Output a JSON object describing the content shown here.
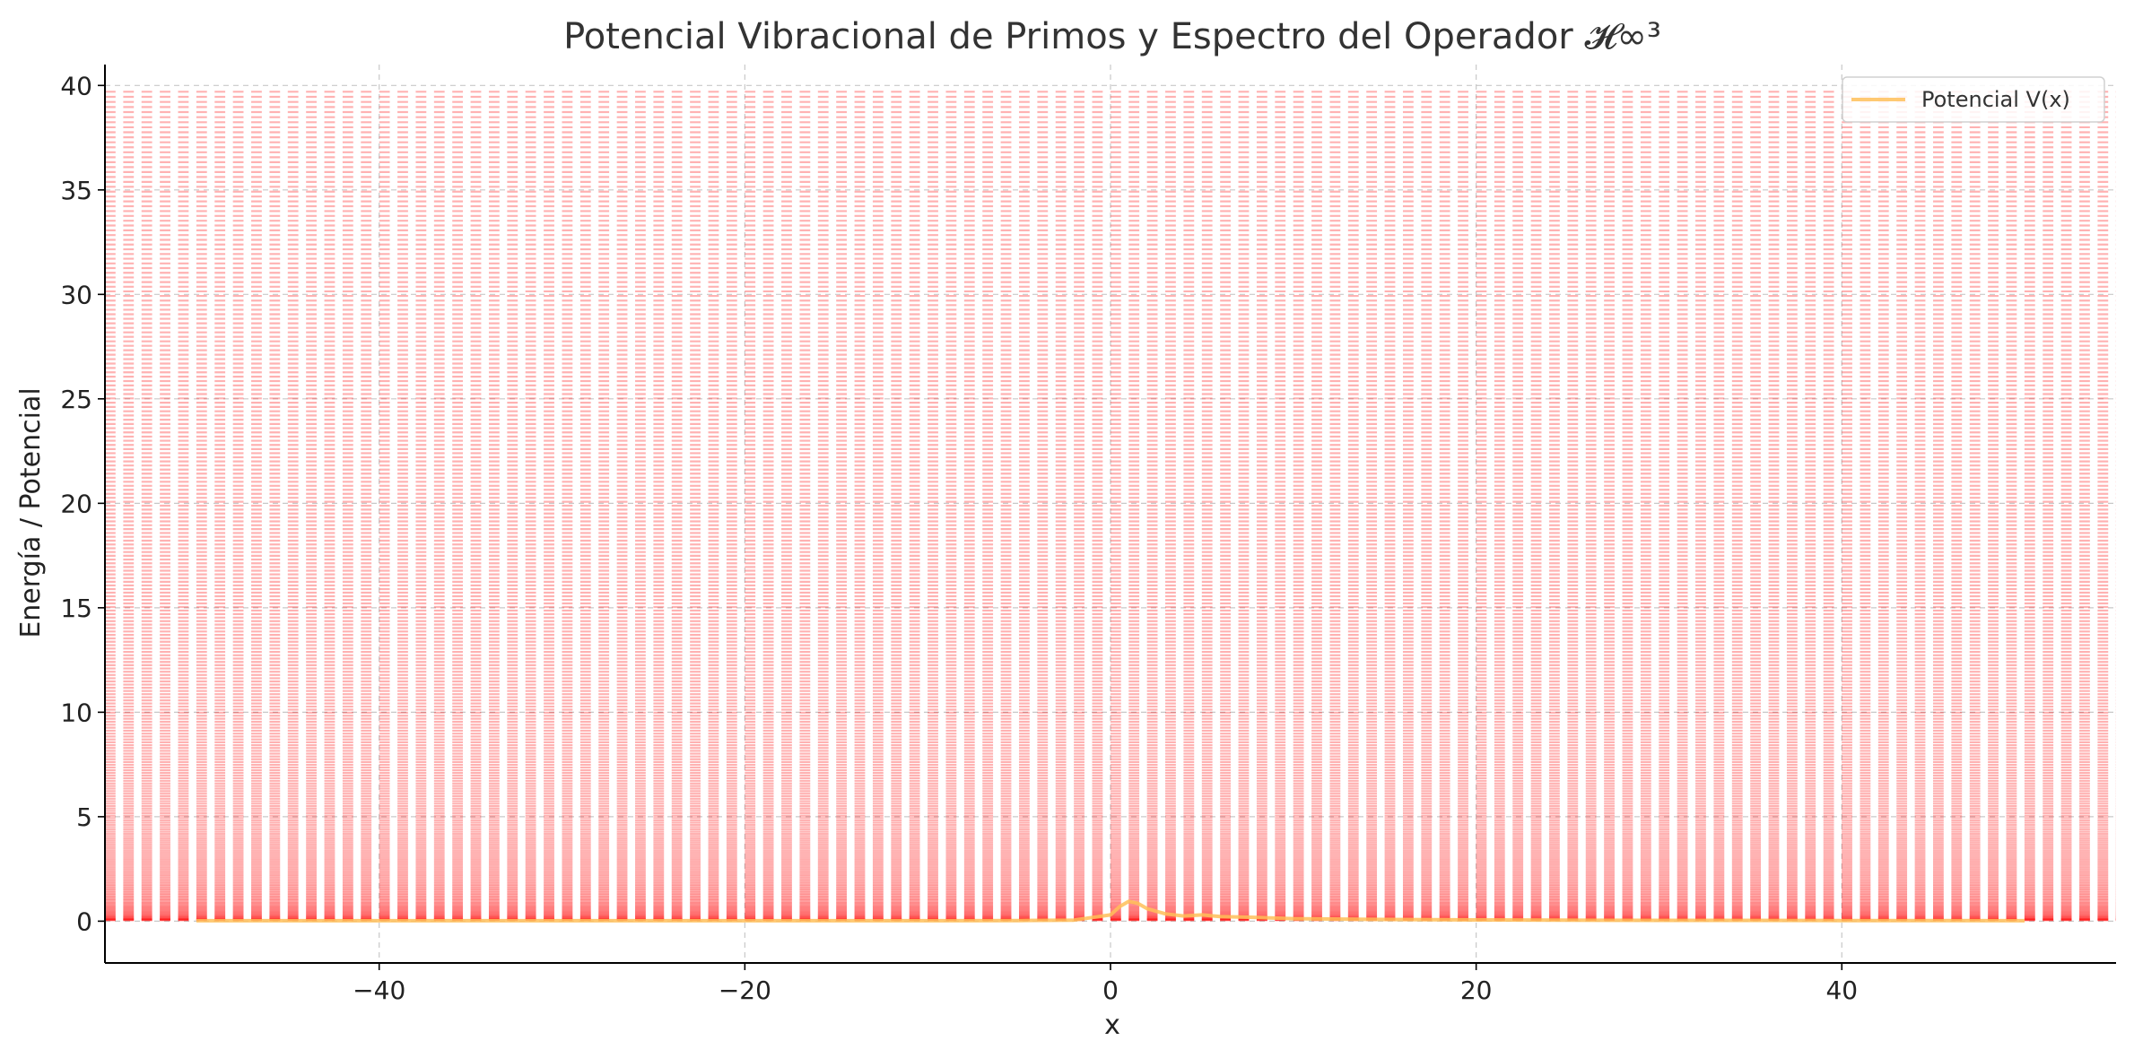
{
  "chart_data": {
    "type": "line",
    "title": "Potencial Vibracional de Primos y Espectro del Operador 𝓗∞³",
    "xlabel": "x",
    "ylabel": "Energía / Potencial",
    "xlim": [
      -55,
      55
    ],
    "ylim": [
      -2,
      41
    ],
    "xticks": [
      -40,
      -20,
      0,
      20,
      40
    ],
    "xtick_labels": [
      "−40",
      "−20",
      "0",
      "20",
      "40"
    ],
    "yticks": [
      0,
      5,
      10,
      15,
      20,
      25,
      30,
      35,
      40
    ],
    "ytick_labels": [
      "0",
      "5",
      "10",
      "15",
      "20",
      "25",
      "30",
      "35",
      "40"
    ],
    "grid": true,
    "legend_position": "top-right",
    "series": [
      {
        "name": "Potencial V(x)",
        "color": "#ffbf59",
        "x": [
          -50,
          -40,
          -30,
          -20,
          -10,
          -5,
          -2,
          0,
          0.5,
          1,
          1.5,
          2,
          3,
          4,
          5,
          6,
          8,
          10,
          15,
          20,
          30,
          40,
          50
        ],
        "y": [
          0.02,
          0.02,
          0.02,
          0.02,
          0.02,
          0.03,
          0.05,
          0.3,
          0.7,
          0.95,
          0.85,
          0.6,
          0.35,
          0.25,
          0.3,
          0.22,
          0.18,
          0.12,
          0.08,
          0.06,
          0.04,
          0.03,
          0.02
        ]
      }
    ],
    "spectrum": {
      "color": "#ff0000",
      "x_range": [
        -55,
        55
      ],
      "dash_count": 110,
      "level_count": 260,
      "level_min": 0.05,
      "level_max": 39.7
    }
  }
}
